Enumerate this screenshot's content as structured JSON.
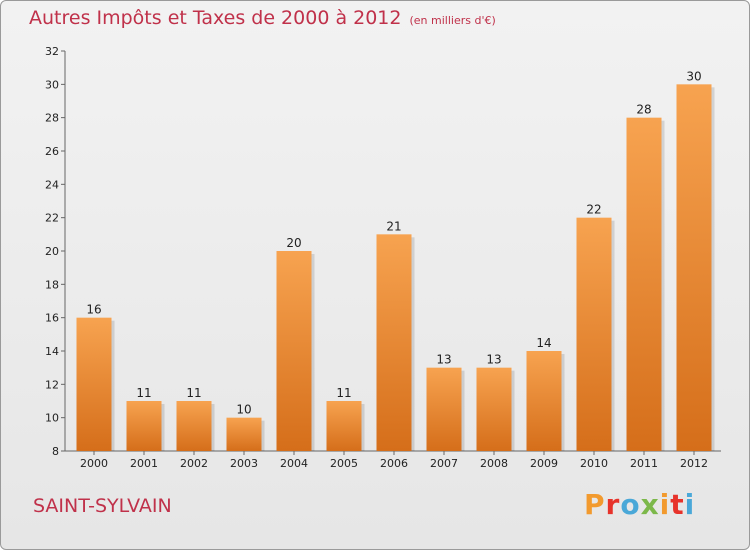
{
  "title": "Autres Impôts et Taxes de 2000 à 2012",
  "unit": "(en milliers d'€)",
  "commune": "SAINT-SYLVAIN",
  "logo": {
    "letters": [
      "P",
      "r",
      "o",
      "x",
      "i",
      "t",
      "i"
    ],
    "colors": [
      "#f29a2e",
      "#e7332b",
      "#4aa8d8",
      "#7cb84a",
      "#f29a2e",
      "#e7332b",
      "#4aa8d8"
    ]
  },
  "colors": {
    "bar_top": "#f7a350",
    "bar_bottom": "#d56e1a",
    "title": "#c0314a"
  },
  "chart_data": {
    "type": "bar",
    "categories": [
      "2000",
      "2001",
      "2002",
      "2003",
      "2004",
      "2005",
      "2006",
      "2007",
      "2008",
      "2009",
      "2010",
      "2011",
      "2012"
    ],
    "values": [
      16,
      11,
      11,
      10,
      20,
      11,
      21,
      13,
      13,
      14,
      22,
      28,
      30
    ],
    "ylim": [
      8,
      32
    ],
    "yticks": [
      8,
      10,
      12,
      14,
      16,
      18,
      20,
      22,
      24,
      26,
      28,
      30,
      32
    ],
    "grid": false,
    "legend": "none"
  }
}
